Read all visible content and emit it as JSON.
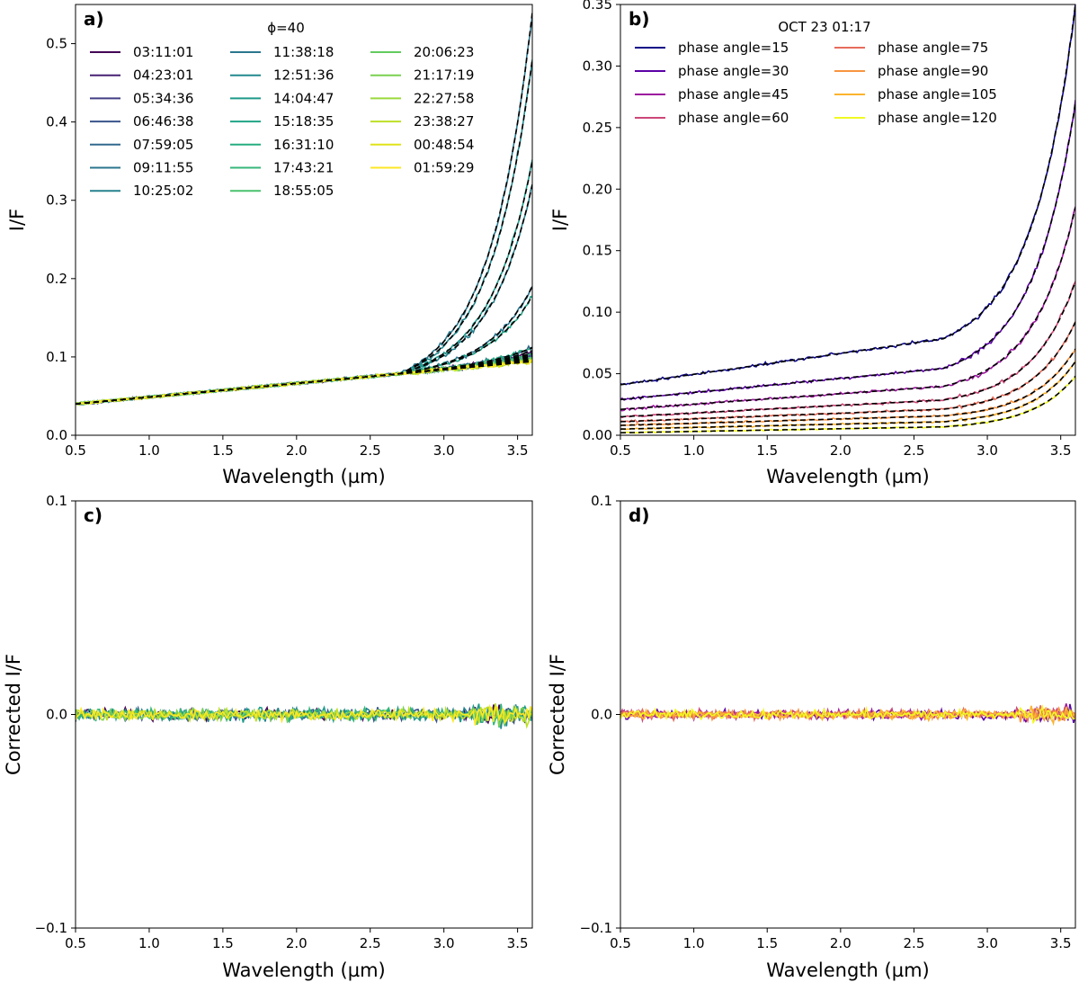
{
  "chart_data": [
    {
      "panel": "a)",
      "type": "line",
      "xlabel": "Wavelength (µm)",
      "ylabel": "I/F",
      "xlim": [
        0.5,
        3.6
      ],
      "ylim": [
        0.0,
        0.55
      ],
      "xticks": [
        "0.5",
        "1.0",
        "1.5",
        "2.0",
        "2.5",
        "3.0",
        "3.5"
      ],
      "yticks": [
        "0.0",
        "0.1",
        "0.2",
        "0.3",
        "0.4",
        "0.5"
      ],
      "legend_title": "ϕ=40",
      "legend_position": "top",
      "fits_dashed": true,
      "series": [
        {
          "name": "03:11:01",
          "color": "#440154",
          "base": 0.04,
          "slope": 0.0175,
          "end": 0.108
        },
        {
          "name": "04:23:01",
          "color": "#472173",
          "base": 0.04,
          "slope": 0.0175,
          "end": 0.105
        },
        {
          "name": "05:34:36",
          "color": "#433e85",
          "base": 0.04,
          "slope": 0.0175,
          "end": 0.103
        },
        {
          "name": "06:46:38",
          "color": "#3a548c",
          "base": 0.04,
          "slope": 0.0175,
          "end": 0.101
        },
        {
          "name": "07:59:05",
          "color": "#31688e",
          "base": 0.04,
          "slope": 0.0175,
          "end": 0.112
        },
        {
          "name": "09:11:55",
          "color": "#2b758e",
          "base": 0.04,
          "slope": 0.0175,
          "end": 0.19
        },
        {
          "name": "10:25:02",
          "color": "#26828e",
          "base": 0.04,
          "slope": 0.0175,
          "end": 0.32
        },
        {
          "name": "11:38:18",
          "color": "#2a788e",
          "base": 0.04,
          "slope": 0.0175,
          "end": 0.54
        },
        {
          "name": "12:51:36",
          "color": "#23898e",
          "base": 0.04,
          "slope": 0.0175,
          "end": 0.48
        },
        {
          "name": "14:04:47",
          "color": "#1f9a8a",
          "base": 0.04,
          "slope": 0.0175,
          "end": 0.35
        },
        {
          "name": "15:18:35",
          "color": "#20a486",
          "base": 0.04,
          "slope": 0.0175,
          "end": 0.178
        },
        {
          "name": "16:31:10",
          "color": "#26ad81",
          "base": 0.04,
          "slope": 0.0175,
          "end": 0.112
        },
        {
          "name": "17:43:21",
          "color": "#35b779",
          "base": 0.04,
          "slope": 0.0175,
          "end": 0.104
        },
        {
          "name": "18:55:05",
          "color": "#4ac16d",
          "base": 0.04,
          "slope": 0.0175,
          "end": 0.1
        },
        {
          "name": "20:06:23",
          "color": "#62cb5f",
          "base": 0.04,
          "slope": 0.0175,
          "end": 0.098
        },
        {
          "name": "21:17:19",
          "color": "#7ad151",
          "base": 0.04,
          "slope": 0.0175,
          "end": 0.096
        },
        {
          "name": "22:27:58",
          "color": "#9bd93c",
          "base": 0.04,
          "slope": 0.0175,
          "end": 0.095
        },
        {
          "name": "23:38:27",
          "color": "#bddf26",
          "base": 0.04,
          "slope": 0.0175,
          "end": 0.094
        },
        {
          "name": "00:48:54",
          "color": "#dfe318",
          "base": 0.04,
          "slope": 0.0175,
          "end": 0.093
        },
        {
          "name": "01:59:29",
          "color": "#fde725",
          "base": 0.04,
          "slope": 0.0175,
          "end": 0.092
        }
      ]
    },
    {
      "panel": "b)",
      "type": "line",
      "xlabel": "Wavelength (µm)",
      "ylabel": "I/F",
      "xlim": [
        0.5,
        3.6
      ],
      "ylim": [
        0.0,
        0.35
      ],
      "xticks": [
        "0.5",
        "1.0",
        "1.5",
        "2.0",
        "2.5",
        "3.0",
        "3.5"
      ],
      "yticks": [
        "0.00",
        "0.05",
        "0.10",
        "0.15",
        "0.20",
        "0.25",
        "0.30",
        "0.35"
      ],
      "legend_title": "OCT 23 01:17",
      "legend_position": "top",
      "fits_dashed": true,
      "series": [
        {
          "name": "phase angle=15",
          "color": "#0d0887",
          "base": 0.041,
          "slope": 0.017,
          "end": 0.35
        },
        {
          "name": "phase angle=30",
          "color": "#5c01a6",
          "base": 0.029,
          "slope": 0.0115,
          "end": 0.27
        },
        {
          "name": "phase angle=45",
          "color": "#9c179e",
          "base": 0.021,
          "slope": 0.0085,
          "end": 0.185
        },
        {
          "name": "phase angle=60",
          "color": "#cc4778",
          "base": 0.015,
          "slope": 0.0062,
          "end": 0.125
        },
        {
          "name": "phase angle=75",
          "color": "#e66c5c",
          "base": 0.011,
          "slope": 0.0046,
          "end": 0.092
        },
        {
          "name": "phase angle=90",
          "color": "#f89540",
          "base": 0.008,
          "slope": 0.0035,
          "end": 0.07
        },
        {
          "name": "phase angle=105",
          "color": "#fbb42e",
          "base": 0.005,
          "slope": 0.0027,
          "end": 0.06
        },
        {
          "name": "phase angle=120",
          "color": "#f0f921",
          "base": 0.002,
          "slope": 0.0022,
          "end": 0.048
        }
      ]
    },
    {
      "panel": "c)",
      "type": "line",
      "xlabel": "Wavelength (µm)",
      "ylabel": "Corrected I/F",
      "xlim": [
        0.5,
        3.6
      ],
      "ylim": [
        -0.1,
        0.1
      ],
      "xticks": [
        "0.5",
        "1.0",
        "1.5",
        "2.0",
        "2.5",
        "3.0",
        "3.5"
      ],
      "yticks": [
        "−0.1",
        "0.0",
        "0.1"
      ],
      "residual_amplitude": 0.004,
      "series_colors": [
        "#440154",
        "#3a548c",
        "#26828e",
        "#1f9a8a",
        "#35b779",
        "#7ad151",
        "#bddf26",
        "#fde725"
      ]
    },
    {
      "panel": "d)",
      "type": "line",
      "xlabel": "Wavelength (µm)",
      "ylabel": "Corrected I/F",
      "xlim": [
        0.5,
        3.6
      ],
      "ylim": [
        -0.1,
        0.1
      ],
      "xticks": [
        "0.5",
        "1.0",
        "1.5",
        "2.0",
        "2.5",
        "3.0",
        "3.5"
      ],
      "yticks": [
        "−0.1",
        "0.0",
        "0.1"
      ],
      "residual_amplitude": 0.003,
      "series_colors": [
        "#5c01a6",
        "#9c179e",
        "#cc4778",
        "#e66c5c",
        "#f89540",
        "#fbb42e",
        "#f0f921"
      ]
    }
  ]
}
